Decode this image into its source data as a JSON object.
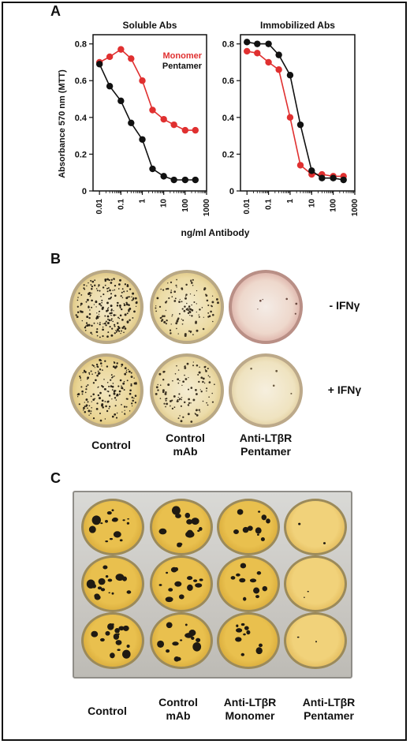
{
  "panel_a": {
    "letter": "A",
    "ylabel": "Absorbance 570 nm (MTT)",
    "xlabel": "ng/ml Antibody",
    "colors": {
      "monomer": "#e03030",
      "pentamer": "#111111"
    },
    "legend": {
      "monomer": "Monomer",
      "pentamer": "Pentamer"
    },
    "chart_data": [
      {
        "type": "line",
        "title": "Soluble Abs",
        "x_scale": "log",
        "xlim": [
          0.005,
          1000
        ],
        "ylim": [
          0,
          0.85
        ],
        "y_ticks": [
          0,
          0.2,
          0.4,
          0.6,
          0.8
        ],
        "y_tick_labels": [
          "0",
          "0.2",
          "0.4",
          "0.6",
          "0.8"
        ],
        "x_ticks": [
          0.01,
          0.1,
          1,
          10,
          100,
          1000
        ],
        "x_tick_labels": [
          "0.01",
          "0.1",
          "1",
          "10",
          "100",
          "1000"
        ],
        "legend_position": "top-right",
        "series": [
          {
            "name": "Monomer",
            "color": "#e03030",
            "x": [
              0.01,
              0.03,
              0.1,
              0.3,
              1,
              3,
              10,
              30,
              100,
              300
            ],
            "y": [
              0.7,
              0.73,
              0.77,
              0.72,
              0.6,
              0.44,
              0.39,
              0.36,
              0.33,
              0.33
            ]
          },
          {
            "name": "Pentamer",
            "color": "#111111",
            "x": [
              0.01,
              0.03,
              0.1,
              0.3,
              1,
              3,
              10,
              30,
              100,
              300
            ],
            "y": [
              0.69,
              0.57,
              0.49,
              0.37,
              0.28,
              0.12,
              0.08,
              0.06,
              0.06,
              0.06
            ]
          }
        ]
      },
      {
        "type": "line",
        "title": "Immobilized Abs",
        "x_scale": "log",
        "xlim": [
          0.005,
          1000
        ],
        "ylim": [
          0,
          0.85
        ],
        "y_ticks": [
          0,
          0.2,
          0.4,
          0.6,
          0.8
        ],
        "y_tick_labels": [
          "0",
          "0.2",
          "0.4",
          "0.6",
          "0.8"
        ],
        "x_ticks": [
          0.01,
          0.1,
          1,
          10,
          100,
          1000
        ],
        "x_tick_labels": [
          "0.01",
          "0.1",
          "1",
          "10",
          "100",
          "1000"
        ],
        "series": [
          {
            "name": "Monomer",
            "color": "#e03030",
            "x": [
              0.01,
              0.03,
              0.1,
              0.3,
              1,
              3,
              10,
              30,
              100,
              300
            ],
            "y": [
              0.76,
              0.75,
              0.7,
              0.66,
              0.4,
              0.14,
              0.09,
              0.09,
              0.08,
              0.08
            ]
          },
          {
            "name": "Pentamer",
            "color": "#111111",
            "x": [
              0.01,
              0.03,
              0.1,
              0.3,
              1,
              3,
              10,
              30,
              100,
              300
            ],
            "y": [
              0.81,
              0.8,
              0.8,
              0.74,
              0.63,
              0.36,
              0.11,
              0.07,
              0.07,
              0.06
            ]
          }
        ]
      }
    ]
  },
  "panel_b": {
    "letter": "B",
    "row_labels": [
      "- IFNγ",
      "+ IFNγ"
    ],
    "column_labels": [
      {
        "line1": "Control",
        "line2": ""
      },
      {
        "line1": "Control",
        "line2": "mAb"
      },
      {
        "line1": "Anti-LTβR",
        "line2": "Pentamer"
      }
    ]
  },
  "panel_c": {
    "letter": "C",
    "column_labels": [
      {
        "line1": "Control",
        "line2": ""
      },
      {
        "line1": "Control",
        "line2": "mAb"
      },
      {
        "line1": "Anti-LTβR",
        "line2": "Monomer"
      },
      {
        "line1": "Anti-LTβR",
        "line2": "Pentamer"
      }
    ]
  }
}
